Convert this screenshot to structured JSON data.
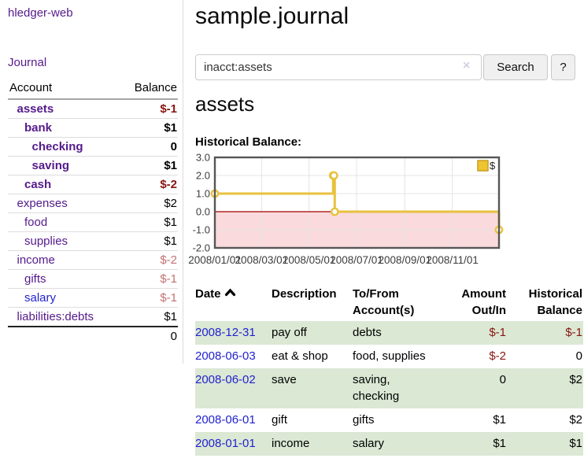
{
  "sidebar": {
    "brand": "hledger-web",
    "nav": {
      "journal": "Journal"
    },
    "accounts_table": {
      "headers": {
        "account": "Account",
        "balance": "Balance"
      },
      "rows": [
        {
          "name": "assets",
          "balance": "$-1",
          "depth": 1,
          "bold": true,
          "balance_color": "neg-strong"
        },
        {
          "name": "bank",
          "balance": "$1",
          "depth": 2,
          "bold": true,
          "balance_color": ""
        },
        {
          "name": "checking",
          "balance": "0",
          "depth": 3,
          "bold": true,
          "balance_color": ""
        },
        {
          "name": "saving",
          "balance": "$1",
          "depth": 3,
          "bold": true,
          "balance_color": ""
        },
        {
          "name": "cash",
          "balance": "$-2",
          "depth": 2,
          "bold": true,
          "balance_color": "neg-strong"
        },
        {
          "name": "expenses",
          "balance": "$2",
          "depth": 1,
          "bold": false,
          "balance_color": ""
        },
        {
          "name": "food",
          "balance": "$1",
          "depth": 2,
          "bold": false,
          "balance_color": ""
        },
        {
          "name": "supplies",
          "balance": "$1",
          "depth": 2,
          "bold": false,
          "balance_color": ""
        },
        {
          "name": "income",
          "balance": "$-2",
          "depth": 1,
          "bold": false,
          "balance_color": "neg-muted"
        },
        {
          "name": "gifts",
          "balance": "$-1",
          "depth": 2,
          "bold": false,
          "balance_color": "neg-muted"
        },
        {
          "name": "salary",
          "balance": "$-1",
          "depth": 2,
          "bold": false,
          "balance_color": "neg-muted",
          "link_blue": true
        },
        {
          "name": "liabilities:debts",
          "balance": "$1",
          "depth": 1,
          "bold": false,
          "balance_color": ""
        }
      ],
      "total": "0"
    }
  },
  "main": {
    "title": "sample.journal",
    "search": {
      "value": "inacct:assets",
      "clear_icon": "×",
      "search_button": "Search",
      "help_button": "?"
    },
    "account_heading": "assets",
    "chart_label": "Historical Balance:"
  },
  "chart_data": {
    "type": "line",
    "style": "step",
    "title": "Historical Balance:",
    "series": [
      {
        "name": "$",
        "points": [
          [
            "2008-01-01",
            1
          ],
          [
            "2008-06-01",
            2
          ],
          [
            "2008-06-02",
            2
          ],
          [
            "2008-06-03",
            0
          ],
          [
            "2008-12-31",
            -1
          ]
        ]
      }
    ],
    "x_start": "2008-01-01",
    "x_end": "2008-12-31",
    "x_ticks": [
      "2008/01/01",
      "2008/03/01",
      "2008/05/01",
      "2008/07/01",
      "2008/09/01",
      "2008/11/01"
    ],
    "y_ticks": [
      "3.0",
      "2.0",
      "1.0",
      "0.0",
      "-1.0",
      "-2.0"
    ],
    "ylim": [
      -2,
      3
    ],
    "grid": true,
    "legend_position": "top-right",
    "colors": {
      "line": "#e8c23e",
      "marker_fill": "#ffffff",
      "legend_fill": "#eec431",
      "legend_border": "#c99e22",
      "negative_region": "#fadadd",
      "zero_line": "#a40000",
      "grid": "#e4e4e4",
      "border": "#565656",
      "axis_text": "#3c3c3c"
    }
  },
  "register_table": {
    "headers": {
      "date": "Date",
      "description": "Description",
      "accounts": "To/From Account(s)",
      "amount": "Amount Out/In",
      "balance": "Historical Balance"
    },
    "rows": [
      {
        "date": "2008-12-31",
        "description": "pay off",
        "accounts": "debts",
        "amount": "$-1",
        "amount_neg": true,
        "balance": "$-1",
        "balance_neg": true
      },
      {
        "date": "2008-06-03",
        "description": "eat & shop",
        "accounts": "food, supplies",
        "amount": "$-2",
        "amount_neg": true,
        "balance": "0",
        "balance_neg": false
      },
      {
        "date": "2008-06-02",
        "description": "save",
        "accounts": "saving, checking",
        "amount": "0",
        "amount_neg": false,
        "balance": "$2",
        "balance_neg": false
      },
      {
        "date": "2008-06-01",
        "description": "gift",
        "accounts": "gifts",
        "amount": "$1",
        "amount_neg": false,
        "balance": "$2",
        "balance_neg": false
      },
      {
        "date": "2008-01-01",
        "description": "income",
        "accounts": "salary",
        "amount": "$1",
        "amount_neg": false,
        "balance": "$1",
        "balance_neg": false
      }
    ]
  }
}
